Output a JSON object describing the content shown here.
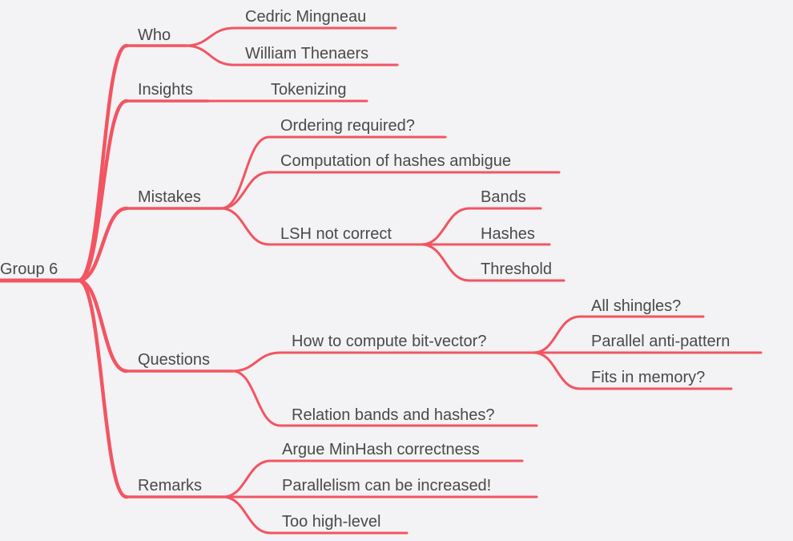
{
  "mindmap": {
    "root": "Group 6",
    "link_color": "#f25562",
    "text_color": "#4a4a4a",
    "background": "#f3f2f4",
    "branches": {
      "who": {
        "label": "Who",
        "children": [
          "Cedric Mingneau",
          "William Thenaers"
        ]
      },
      "insights": {
        "label": "Insights",
        "children": [
          "Tokenizing"
        ]
      },
      "mistakes": {
        "label": "Mistakes",
        "children": [
          "Ordering required?",
          "Computation of hashes ambigue",
          "LSH not correct"
        ],
        "lsh_children": [
          "Bands",
          "Hashes",
          "Threshold"
        ]
      },
      "questions": {
        "label": "Questions",
        "children": [
          "How to compute bit-vector?",
          "Relation bands and hashes?"
        ],
        "bitvector_children": [
          "All shingles?",
          "Parallel anti-pattern",
          "Fits in memory?"
        ]
      },
      "remarks": {
        "label": "Remarks",
        "children": [
          "Argue MinHash correctness",
          "Parallelism can be increased!",
          "Too high-level"
        ]
      }
    }
  }
}
